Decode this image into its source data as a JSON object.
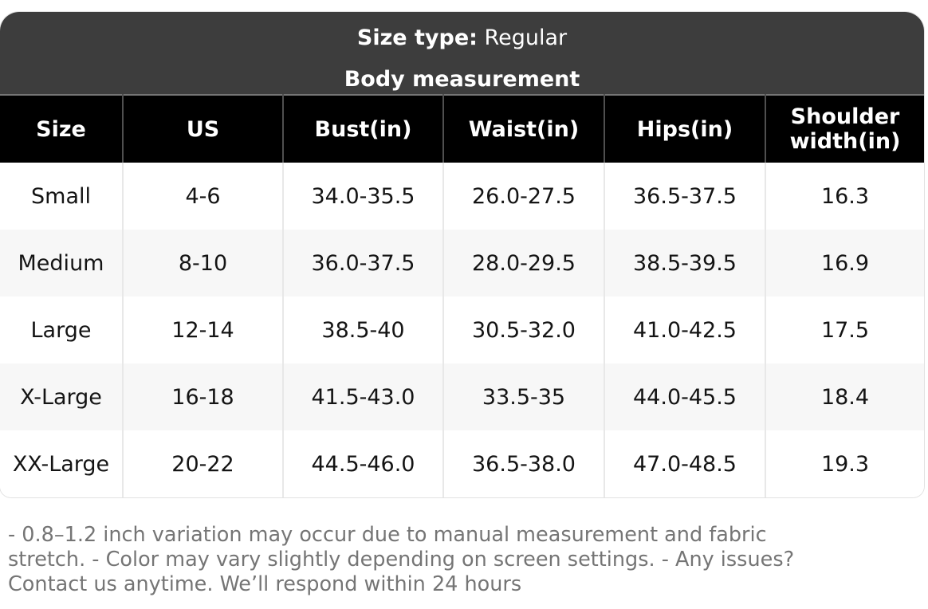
{
  "header": {
    "size_type_label": "Size type:",
    "size_type_value": "Regular",
    "subtitle": "Body measurement"
  },
  "table": {
    "columns": [
      "Size",
      "US",
      "Bust(in)",
      "Waist(in)",
      "Hips(in)",
      "Shoulder width(in)"
    ],
    "rows": [
      [
        "Small",
        "4-6",
        "34.0-35.5",
        "26.0-27.5",
        "36.5-37.5",
        "16.3"
      ],
      [
        "Medium",
        "8-10",
        "36.0-37.5",
        "28.0-29.5",
        "38.5-39.5",
        "16.9"
      ],
      [
        "Large",
        "12-14",
        "38.5-40",
        "30.5-32.0",
        "41.0-42.5",
        "17.5"
      ],
      [
        "X-Large",
        "16-18",
        "41.5-43.0",
        "33.5-35",
        "44.0-45.5",
        "18.4"
      ],
      [
        "XX-Large",
        "20-22",
        "44.5-46.0",
        "36.5-38.0",
        "47.0-48.5",
        "19.3"
      ]
    ]
  },
  "footnote": {
    "line1": "- 0.8–1.2 inch variation may occur due to manual measurement and fabric",
    "line2": "stretch. - Color may vary slightly depending on screen settings. - Any issues?",
    "line3": "Contact us anytime. We’ll respond within 24 hours"
  },
  "colors": {
    "title_bar_bg": "#3d3d3d",
    "table_header_bg": "#000000",
    "row_alt_bg": "#f7f7f7",
    "divider": "#e8e8e8",
    "footnote_text": "#757575"
  }
}
